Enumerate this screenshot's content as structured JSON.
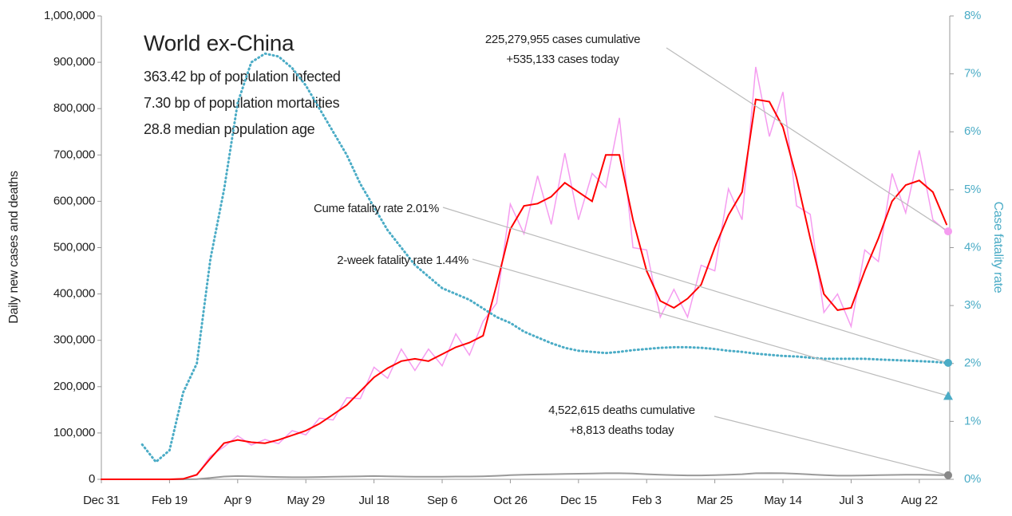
{
  "chart_data": {
    "type": "line",
    "title": "World ex-China",
    "subtitle_lines": [
      "363.42 bp of population infected",
      "7.30 bp of population mortalities",
      "28.8 median population age"
    ],
    "y_label": "Daily new cases and deaths",
    "y2_label": "Case fatality rate",
    "categories": [
      "Dec 31",
      null,
      null,
      null,
      null,
      "Feb 19",
      null,
      null,
      null,
      null,
      "Apr 9",
      null,
      null,
      null,
      null,
      "May 29",
      null,
      null,
      null,
      null,
      "Jul 18",
      null,
      null,
      null,
      null,
      "Sep 6",
      null,
      null,
      null,
      null,
      "Oct 26",
      null,
      null,
      null,
      null,
      "Dec 15",
      null,
      null,
      null,
      null,
      "Feb 3",
      null,
      null,
      null,
      null,
      "Mar 25",
      null,
      null,
      null,
      null,
      "May 14",
      null,
      null,
      null,
      null,
      "Jul 3",
      null,
      null,
      null,
      null,
      "Aug 22",
      null,
      null
    ],
    "ylim": [
      0,
      1000000
    ],
    "yticks": [
      0,
      {
        "value": 100000,
        "label": "100,000"
      },
      {
        "value": 200000,
        "label": "200,000"
      },
      {
        "value": 300000,
        "label": "300,000"
      },
      {
        "value": 400000,
        "label": "400,000"
      },
      {
        "value": 500000,
        "label": "500,000"
      },
      {
        "value": 600000,
        "label": "600,000"
      },
      {
        "value": 700000,
        "label": "700,000"
      },
      {
        "value": 800000,
        "label": "800,000"
      },
      {
        "value": 900000,
        "label": "900,000"
      },
      {
        "value": 1000000,
        "label": "1,000,000"
      }
    ],
    "y2lim": [
      0,
      8
    ],
    "y2ticks": [
      {
        "value": 0,
        "label": "0%"
      },
      {
        "value": 1,
        "label": "1%"
      },
      {
        "value": 2,
        "label": "2%"
      },
      {
        "value": 3,
        "label": "3%"
      },
      {
        "value": 4,
        "label": "4%"
      },
      {
        "value": 5,
        "label": "5%"
      },
      {
        "value": 6,
        "label": "6%"
      },
      {
        "value": 7,
        "label": "7%"
      },
      {
        "value": 8,
        "label": "8%"
      }
    ],
    "series": [
      {
        "color": "#f59cf0",
        "width": 1.5,
        "dash": "",
        "values": [
          0,
          0,
          0,
          0,
          0,
          0,
          1000,
          9000,
          50000,
          70000,
          94000,
          74000,
          86000,
          77000,
          105000,
          96000,
          132000,
          128000,
          176000,
          174000,
          242000,
          218000,
          281000,
          235000,
          281000,
          245000,
          314000,
          268000,
          341000,
          380000,
          594000,
          530000,
          655000,
          550000,
          704000,
          560000,
          660000,
          630000,
          780000,
          500000,
          495000,
          350000,
          410000,
          350000,
          462000,
          450000,
          627000,
          560000,
          890000,
          740000,
          836000,
          590000,
          572000,
          360000,
          400000,
          330000,
          495000,
          470000,
          660000,
          575000,
          710000,
          560000,
          535133
        ]
      },
      {
        "color": "#999999",
        "width": 2,
        "dash": "",
        "values": [
          0,
          0,
          0,
          0,
          0,
          0,
          0,
          500,
          3000,
          6000,
          7000,
          6500,
          5500,
          5000,
          4500,
          4500,
          5000,
          5500,
          6000,
          6500,
          7000,
          6500,
          6000,
          5500,
          5500,
          5500,
          6000,
          6000,
          6500,
          7500,
          9000,
          10000,
          10500,
          11000,
          11500,
          12000,
          12500,
          13000,
          13000,
          12500,
          11000,
          10000,
          9000,
          8500,
          8500,
          9000,
          10000,
          11000,
          13000,
          13500,
          13000,
          12000,
          10500,
          9000,
          8000,
          8000,
          8500,
          9000,
          9500,
          10000,
          10000,
          9500,
          8813
        ]
      },
      {
        "color": "#ff0000",
        "width": 2,
        "dash": "",
        "values": [
          0,
          0,
          0,
          0,
          0,
          0,
          1000,
          10000,
          45000,
          78000,
          85000,
          80000,
          78000,
          85000,
          95000,
          105000,
          120000,
          140000,
          160000,
          190000,
          220000,
          240000,
          255000,
          260000,
          255000,
          270000,
          285000,
          295000,
          310000,
          420000,
          540000,
          590000,
          595000,
          610000,
          640000,
          620000,
          600000,
          700000,
          700000,
          560000,
          450000,
          385000,
          370000,
          390000,
          420000,
          500000,
          570000,
          620000,
          820000,
          815000,
          760000,
          650000,
          520000,
          400000,
          365000,
          370000,
          450000,
          520000,
          600000,
          635000,
          645000,
          620000,
          550000
        ]
      },
      {
        "color": "#4bacc6",
        "width": 3,
        "dash": "1 4",
        "axis": "y2",
        "values": [
          null,
          null,
          null,
          0.6,
          0.3,
          0.5,
          1.5,
          2.0,
          3.8,
          5.0,
          6.5,
          7.2,
          7.35,
          7.3,
          7.1,
          6.8,
          6.4,
          6.0,
          5.6,
          5.1,
          4.7,
          4.3,
          4.0,
          3.7,
          3.5,
          3.3,
          3.2,
          3.1,
          2.95,
          2.8,
          2.7,
          2.55,
          2.45,
          2.35,
          2.27,
          2.22,
          2.2,
          2.18,
          2.2,
          2.23,
          2.25,
          2.27,
          2.28,
          2.28,
          2.27,
          2.25,
          2.22,
          2.2,
          2.17,
          2.15,
          2.13,
          2.12,
          2.1,
          2.08,
          2.08,
          2.08,
          2.08,
          2.07,
          2.06,
          2.05,
          2.04,
          2.03,
          2.01
        ]
      }
    ],
    "annotations": [
      {
        "lines": [
          "225,279,955 cases cumulative",
          "+535,133 cases today"
        ],
        "value": 535133,
        "axis": "y",
        "color": "#f59cf0",
        "marker": "circle"
      },
      {
        "lines": [
          "Cume fatality rate 2.01%"
        ],
        "value": 2.01,
        "axis": "y2",
        "color": "#4bacc6",
        "marker": "circle"
      },
      {
        "lines": [
          "2-week fatality rate 1.44%"
        ],
        "value": 1.44,
        "axis": "y2",
        "color": "#4bacc6",
        "marker": "triangle"
      },
      {
        "lines": [
          "4,522,615 deaths cumulative",
          "+8,813 deaths today"
        ],
        "value": 8813,
        "axis": "y",
        "color": "#888888",
        "marker": "circle"
      }
    ]
  }
}
